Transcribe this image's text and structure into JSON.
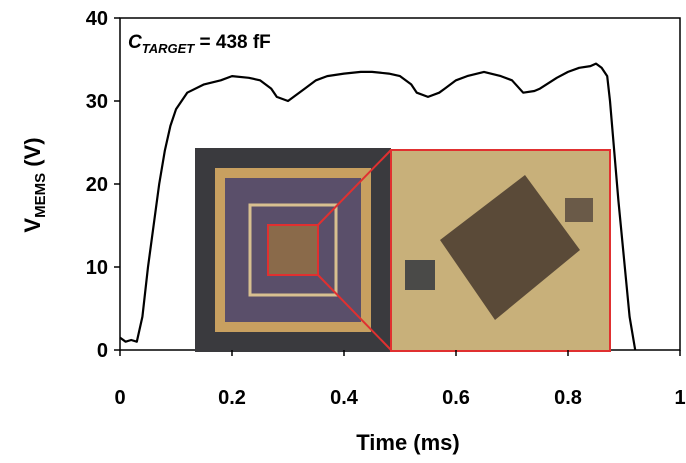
{
  "chart_data": {
    "type": "line",
    "annotation": {
      "main": "C",
      "sub": "TARGET",
      "rest": " = 438 fF"
    },
    "y_label": {
      "main": "V",
      "sub": "MEMS",
      "rest": " (V)"
    },
    "x_label": "Time (ms)",
    "xlim": [
      0,
      1
    ],
    "xticks": [
      0,
      0.2,
      0.4,
      0.6,
      0.8,
      1
    ],
    "ylim": [
      0,
      40
    ],
    "yticks": [
      0,
      10,
      20,
      30,
      40
    ],
    "grid": false,
    "series": [
      {
        "color": "#000000",
        "x": [
          0,
          0.01,
          0.02,
          0.03,
          0.04,
          0.05,
          0.06,
          0.07,
          0.08,
          0.09,
          0.1,
          0.12,
          0.15,
          0.18,
          0.2,
          0.23,
          0.25,
          0.27,
          0.28,
          0.3,
          0.32,
          0.33,
          0.35,
          0.37,
          0.4,
          0.43,
          0.45,
          0.48,
          0.5,
          0.52,
          0.53,
          0.55,
          0.57,
          0.58,
          0.6,
          0.62,
          0.65,
          0.68,
          0.7,
          0.72,
          0.74,
          0.75,
          0.78,
          0.8,
          0.82,
          0.84,
          0.85,
          0.86,
          0.87,
          0.875,
          0.88,
          0.89,
          0.9,
          0.91,
          0.92
        ],
        "values": [
          1.5,
          1,
          1.2,
          1,
          4,
          10,
          15,
          20,
          24,
          27,
          29,
          31,
          32,
          32.5,
          33,
          32.8,
          32.5,
          31.5,
          30.5,
          30,
          31,
          31.5,
          32.5,
          33,
          33.3,
          33.5,
          33.5,
          33.3,
          33,
          32,
          31,
          30.5,
          31,
          31.5,
          32.5,
          33,
          33.5,
          33,
          32.5,
          31,
          31.2,
          31.5,
          32.8,
          33.5,
          34,
          34.2,
          34.5,
          34,
          33,
          30,
          26,
          18,
          11,
          4,
          0
        ]
      }
    ]
  }
}
